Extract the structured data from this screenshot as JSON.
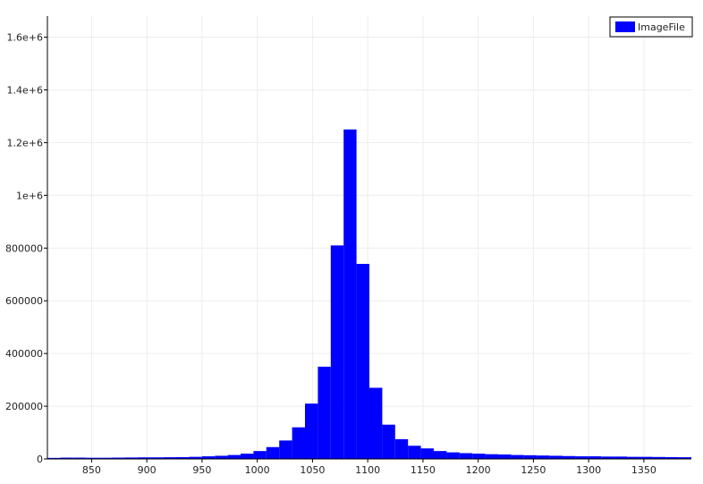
{
  "chart_data": {
    "type": "bar",
    "title": "",
    "xlabel": "",
    "ylabel": "",
    "xlim": [
      810,
      1393
    ],
    "ylim": [
      0,
      1680000
    ],
    "bin_width": 11.66,
    "bin_starts": [
      810.0,
      821.66,
      833.32,
      844.98,
      856.64,
      868.3,
      879.96,
      891.62,
      903.28,
      914.94,
      926.6,
      938.26,
      949.92,
      961.58,
      973.24,
      984.9,
      996.56,
      1008.22,
      1019.88,
      1031.54,
      1043.2,
      1054.86,
      1066.52,
      1078.18,
      1089.84,
      1101.5,
      1113.16,
      1124.82,
      1136.48,
      1148.14,
      1159.8,
      1171.46,
      1183.12,
      1194.78,
      1206.44,
      1218.1,
      1229.76,
      1241.42,
      1253.08,
      1264.74,
      1276.4,
      1288.06,
      1299.72,
      1311.38,
      1323.04,
      1334.7,
      1346.36,
      1358.02,
      1369.68,
      1381.34
    ],
    "series": [
      {
        "name": "ImageFile",
        "color": "#0000ff",
        "values": [
          4000,
          5000,
          5000,
          4500,
          4500,
          5000,
          5500,
          6000,
          6000,
          6500,
          7000,
          8000,
          10000,
          12000,
          15000,
          20000,
          30000,
          45000,
          70000,
          120000,
          210000,
          350000,
          810000,
          1250000,
          740000,
          270000,
          130000,
          75000,
          50000,
          40000,
          30000,
          25000,
          22000,
          20000,
          18000,
          17000,
          15000,
          14000,
          13000,
          12000,
          11000,
          10000,
          10000,
          9000,
          9000,
          8000,
          8000,
          7500,
          7000,
          6500
        ]
      }
    ],
    "x_ticks": [
      850,
      900,
      950,
      1000,
      1050,
      1100,
      1150,
      1200,
      1250,
      1300,
      1350
    ],
    "x_tick_labels": [
      "850",
      "900",
      "950",
      "1000",
      "1050",
      "1100",
      "1150",
      "1200",
      "1250",
      "1300",
      "1350"
    ],
    "y_ticks": [
      0,
      200000,
      400000,
      600000,
      800000,
      1000000,
      1200000,
      1400000,
      1600000
    ],
    "y_tick_labels": [
      "0",
      "200000",
      "400000",
      "600000",
      "800000",
      "1e+6",
      "1.2e+6",
      "1.4e+6",
      "1.6e+6"
    ],
    "grid": true,
    "legend": {
      "position": "top-right",
      "entries": [
        "ImageFile"
      ]
    }
  }
}
